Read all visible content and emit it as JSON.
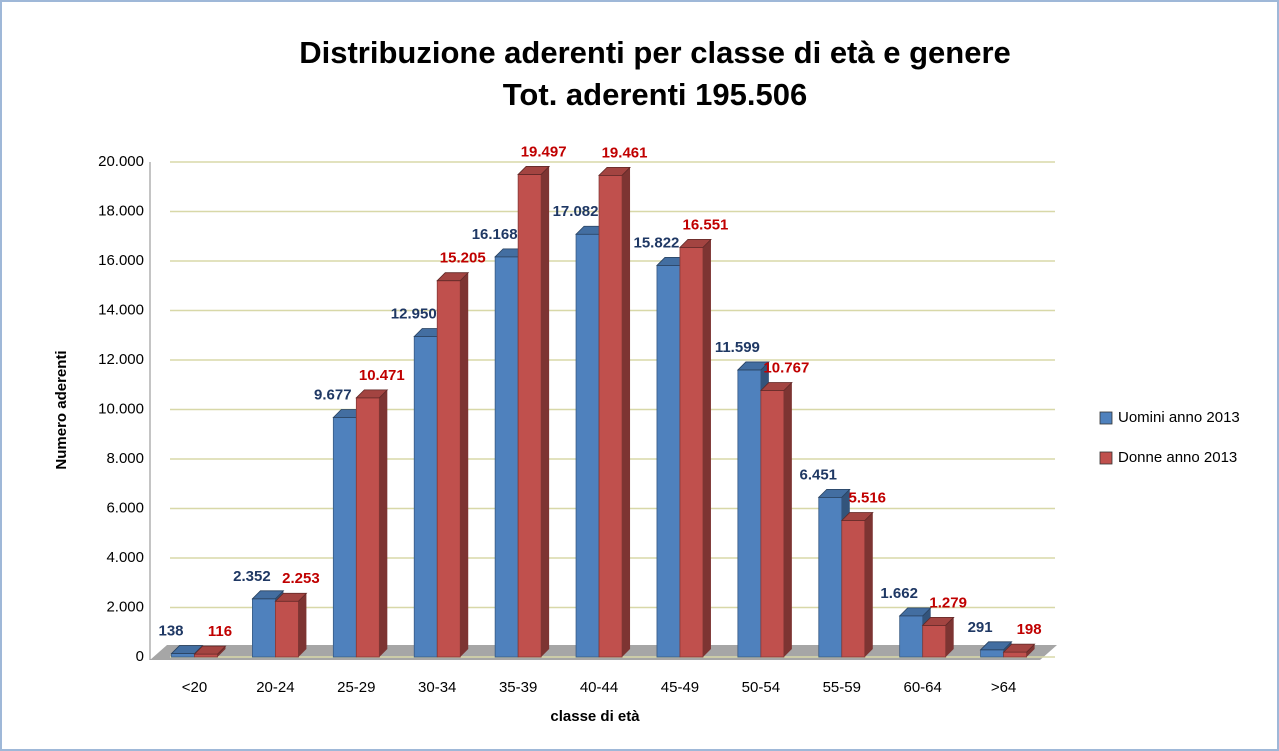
{
  "chart_data": {
    "type": "bar3d",
    "title": "Distribuzione aderenti per classe di età e genere",
    "subtitle": "Tot. aderenti 195.506",
    "x_label": "classe di età",
    "y_label": "Numero aderenti",
    "categories": [
      "<20",
      "20-24",
      "25-29",
      "30-34",
      "35-39",
      "40-44",
      "45-49",
      "50-54",
      "55-59",
      "60-64",
      ">64"
    ],
    "series": [
      {
        "name": "Uomini anno 2013",
        "color": "#4f81bd",
        "label_color": "#1f3864",
        "values": [
          138,
          2352,
          9677,
          12950,
          16168,
          17082,
          15822,
          11599,
          6451,
          1662,
          291
        ],
        "value_labels": [
          "138",
          "2.352",
          "9.677",
          "12.950",
          "16.168",
          "17.082",
          "15.822",
          "11.599",
          "6.451",
          "1.662",
          "291"
        ]
      },
      {
        "name": "Donne anno 2013",
        "color": "#c0504d",
        "label_color": "#c00000",
        "values": [
          116,
          2253,
          10471,
          15205,
          19497,
          19461,
          16551,
          10767,
          5516,
          1279,
          198
        ],
        "value_labels": [
          "116",
          "2.253",
          "10.471",
          "15.205",
          "19.497",
          "19.461",
          "16.551",
          "10.767",
          "5.516",
          "1.279",
          "198"
        ]
      }
    ],
    "ylim": [
      0,
      20000
    ],
    "yticks": [
      0,
      {
        "value": 2000,
        "label": "2.000"
      },
      {
        "value": 4000,
        "label": "4.000"
      },
      {
        "value": 6000,
        "label": "6.000"
      },
      {
        "value": 8000,
        "label": "8.000"
      },
      {
        "value": 10000,
        "label": "10.000"
      },
      {
        "value": 12000,
        "label": "12.000"
      },
      {
        "value": 14000,
        "label": "14.000"
      },
      {
        "value": 16000,
        "label": "16.000"
      },
      {
        "value": 18000,
        "label": "18.000"
      },
      {
        "value": 20000,
        "label": "20.000"
      }
    ],
    "grid": true,
    "legend": "right"
  }
}
